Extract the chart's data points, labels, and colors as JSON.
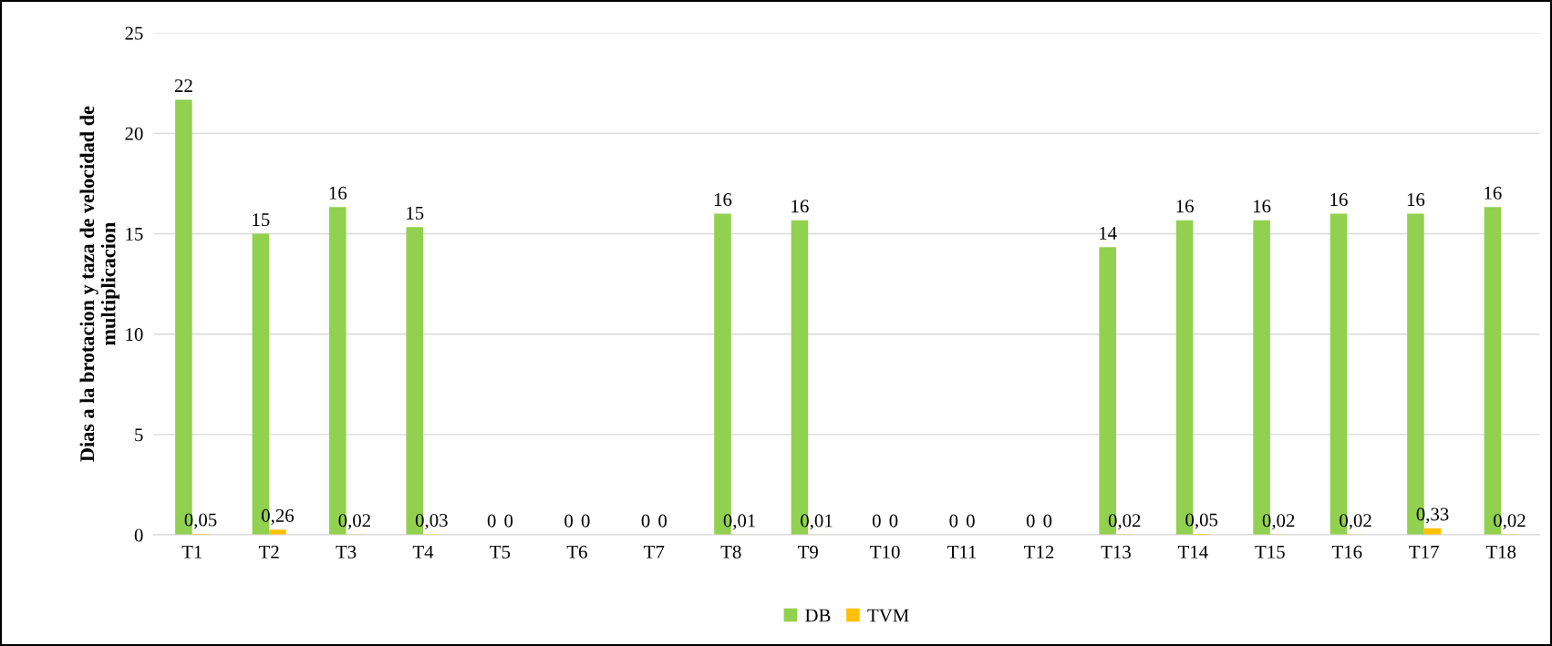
{
  "chart_data": {
    "type": "bar",
    "ylabel": "Dias a la brotacion y taza de velocidad de\nmultiplicacion",
    "categories": [
      "T1",
      "T2",
      "T3",
      "T4",
      "T5",
      "T6",
      "T7",
      "T8",
      "T9",
      "T10",
      "T11",
      "T12",
      "T13",
      "T14",
      "T15",
      "T16",
      "T17",
      "T18"
    ],
    "series": [
      {
        "name": "DB",
        "color": "#92d050",
        "values": [
          21.67,
          15,
          16.33,
          15.33,
          0,
          0,
          0,
          16,
          15.67,
          0,
          0,
          0,
          14.33,
          15.67,
          15.67,
          16,
          16,
          16.33
        ],
        "value_labels": [
          "22",
          "15",
          "16",
          "15",
          "0",
          "0",
          "0",
          "16",
          "16",
          "0",
          "0",
          "0",
          "14",
          "16",
          "16",
          "16",
          "16",
          "16"
        ]
      },
      {
        "name": "TVM",
        "color": "#ffc000",
        "values": [
          0.05,
          0.26,
          0.02,
          0.03,
          0,
          0,
          0,
          0.01,
          0.01,
          0,
          0,
          0,
          0.02,
          0.05,
          0.02,
          0.02,
          0.33,
          0.02
        ],
        "value_labels": [
          "0,05",
          "0,26",
          "0,02",
          "0,03",
          "0",
          "0",
          "0",
          "0,01",
          "0,01",
          "0",
          "0",
          "0",
          "0,02",
          "0,05",
          "0,02",
          "0,02",
          "0,33",
          "0,02"
        ]
      }
    ],
    "ylim": [
      0,
      25
    ],
    "yticks": [
      0,
      5,
      10,
      15,
      20,
      25
    ],
    "grid": "y",
    "legend": "bottom"
  }
}
